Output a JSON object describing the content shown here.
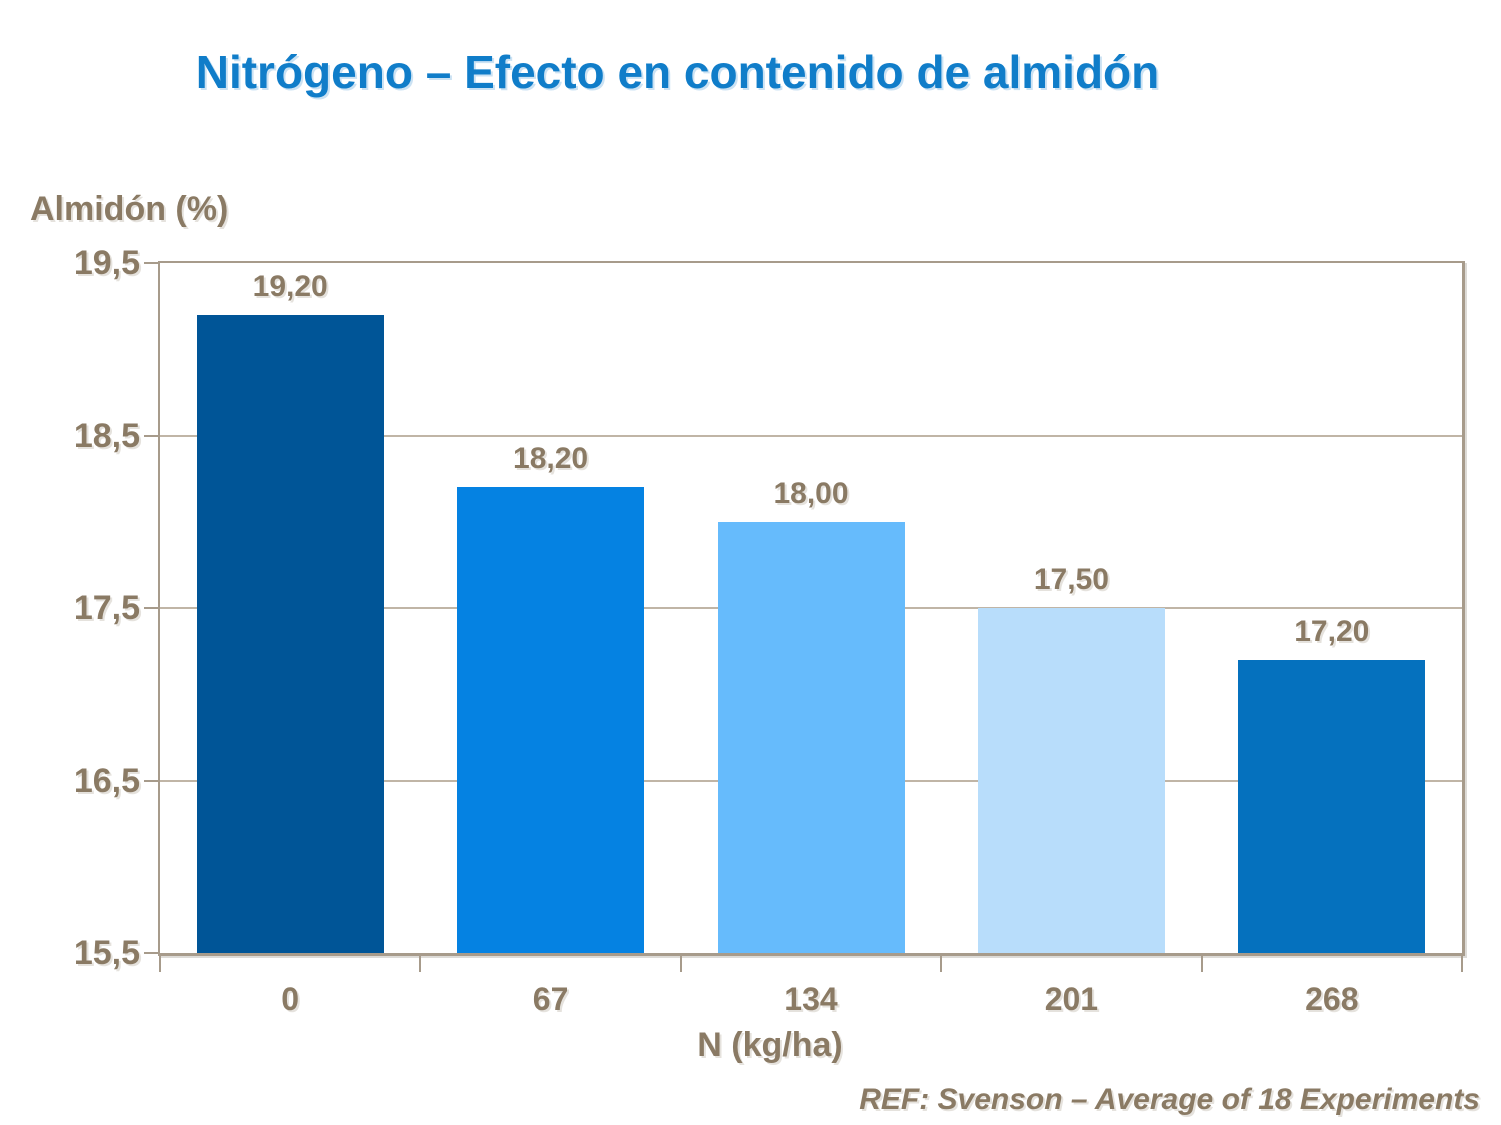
{
  "chart_data": {
    "type": "bar",
    "title": "Nitrógeno – Efecto en contenido de almidón",
    "ylabel": "Almidón (%)",
    "xlabel": "N (kg/ha)",
    "footer": "REF: Svenson – Average of 18 Experiments",
    "categories": [
      "0",
      "67",
      "134",
      "201",
      "268"
    ],
    "values": [
      19.2,
      18.2,
      18.0,
      17.5,
      17.2
    ],
    "value_labels": [
      "19,20",
      "18,20",
      "18,00",
      "17,50",
      "17,20"
    ],
    "yticks": [
      19.5,
      18.5,
      17.5,
      16.5,
      15.5
    ],
    "ytick_labels": [
      "19,5",
      "18,5",
      "17,5",
      "16,5",
      "15,5"
    ],
    "ylim": [
      15.5,
      19.5
    ],
    "grid": true,
    "legend": "none",
    "colors": {
      "title": "#107DC9",
      "axis_text": "#8A7A64",
      "axis_line": "#A79B8B",
      "gridline": "#C0B5A6",
      "bars": [
        "#005597",
        "#0582E2",
        "#66BBFC",
        "#B8DDFB",
        "#0571BE"
      ]
    }
  }
}
